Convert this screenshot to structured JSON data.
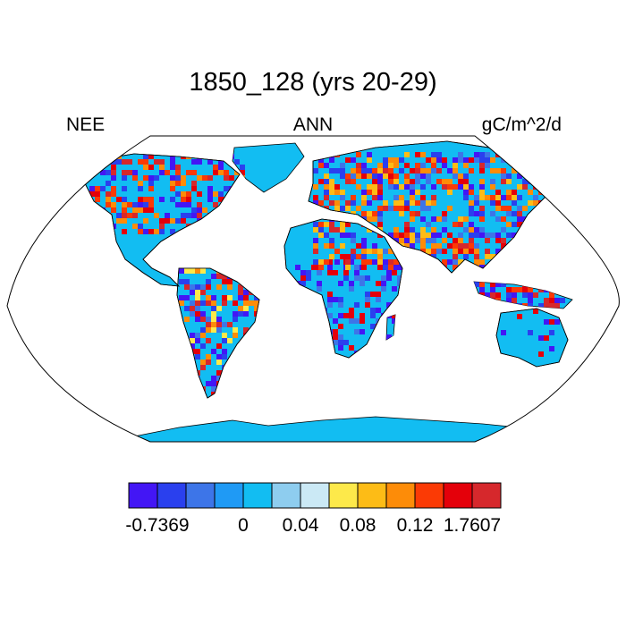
{
  "title": "1850_128 (yrs 20-29)",
  "subtitle_left": "NEE",
  "subtitle_center": "ANN",
  "subtitle_right": "gC/m^2/d",
  "colorbar": {
    "colors": [
      "#4316f5",
      "#2a40ee",
      "#3d75e8",
      "#1f9af5",
      "#12bdf2",
      "#8ecdef",
      "#cbe9f5",
      "#fde94a",
      "#fdbc16",
      "#fd8c08",
      "#fb3a05",
      "#e4000a",
      "#d6282c"
    ],
    "tick_labels": [
      {
        "text": "-0.7369",
        "at_box_edge": 1
      },
      {
        "text": "0",
        "at_box_edge": 4
      },
      {
        "text": "0.04",
        "at_box_edge": 6
      },
      {
        "text": "0.08",
        "at_box_edge": 8
      },
      {
        "text": "0.12",
        "at_box_edge": 10
      },
      {
        "text": "1.7607",
        "at_box_edge": 12
      }
    ]
  },
  "map": {
    "projection": "Robinson",
    "ocean_color": "#ffffff",
    "default_land_color": "#12bdf2"
  }
}
